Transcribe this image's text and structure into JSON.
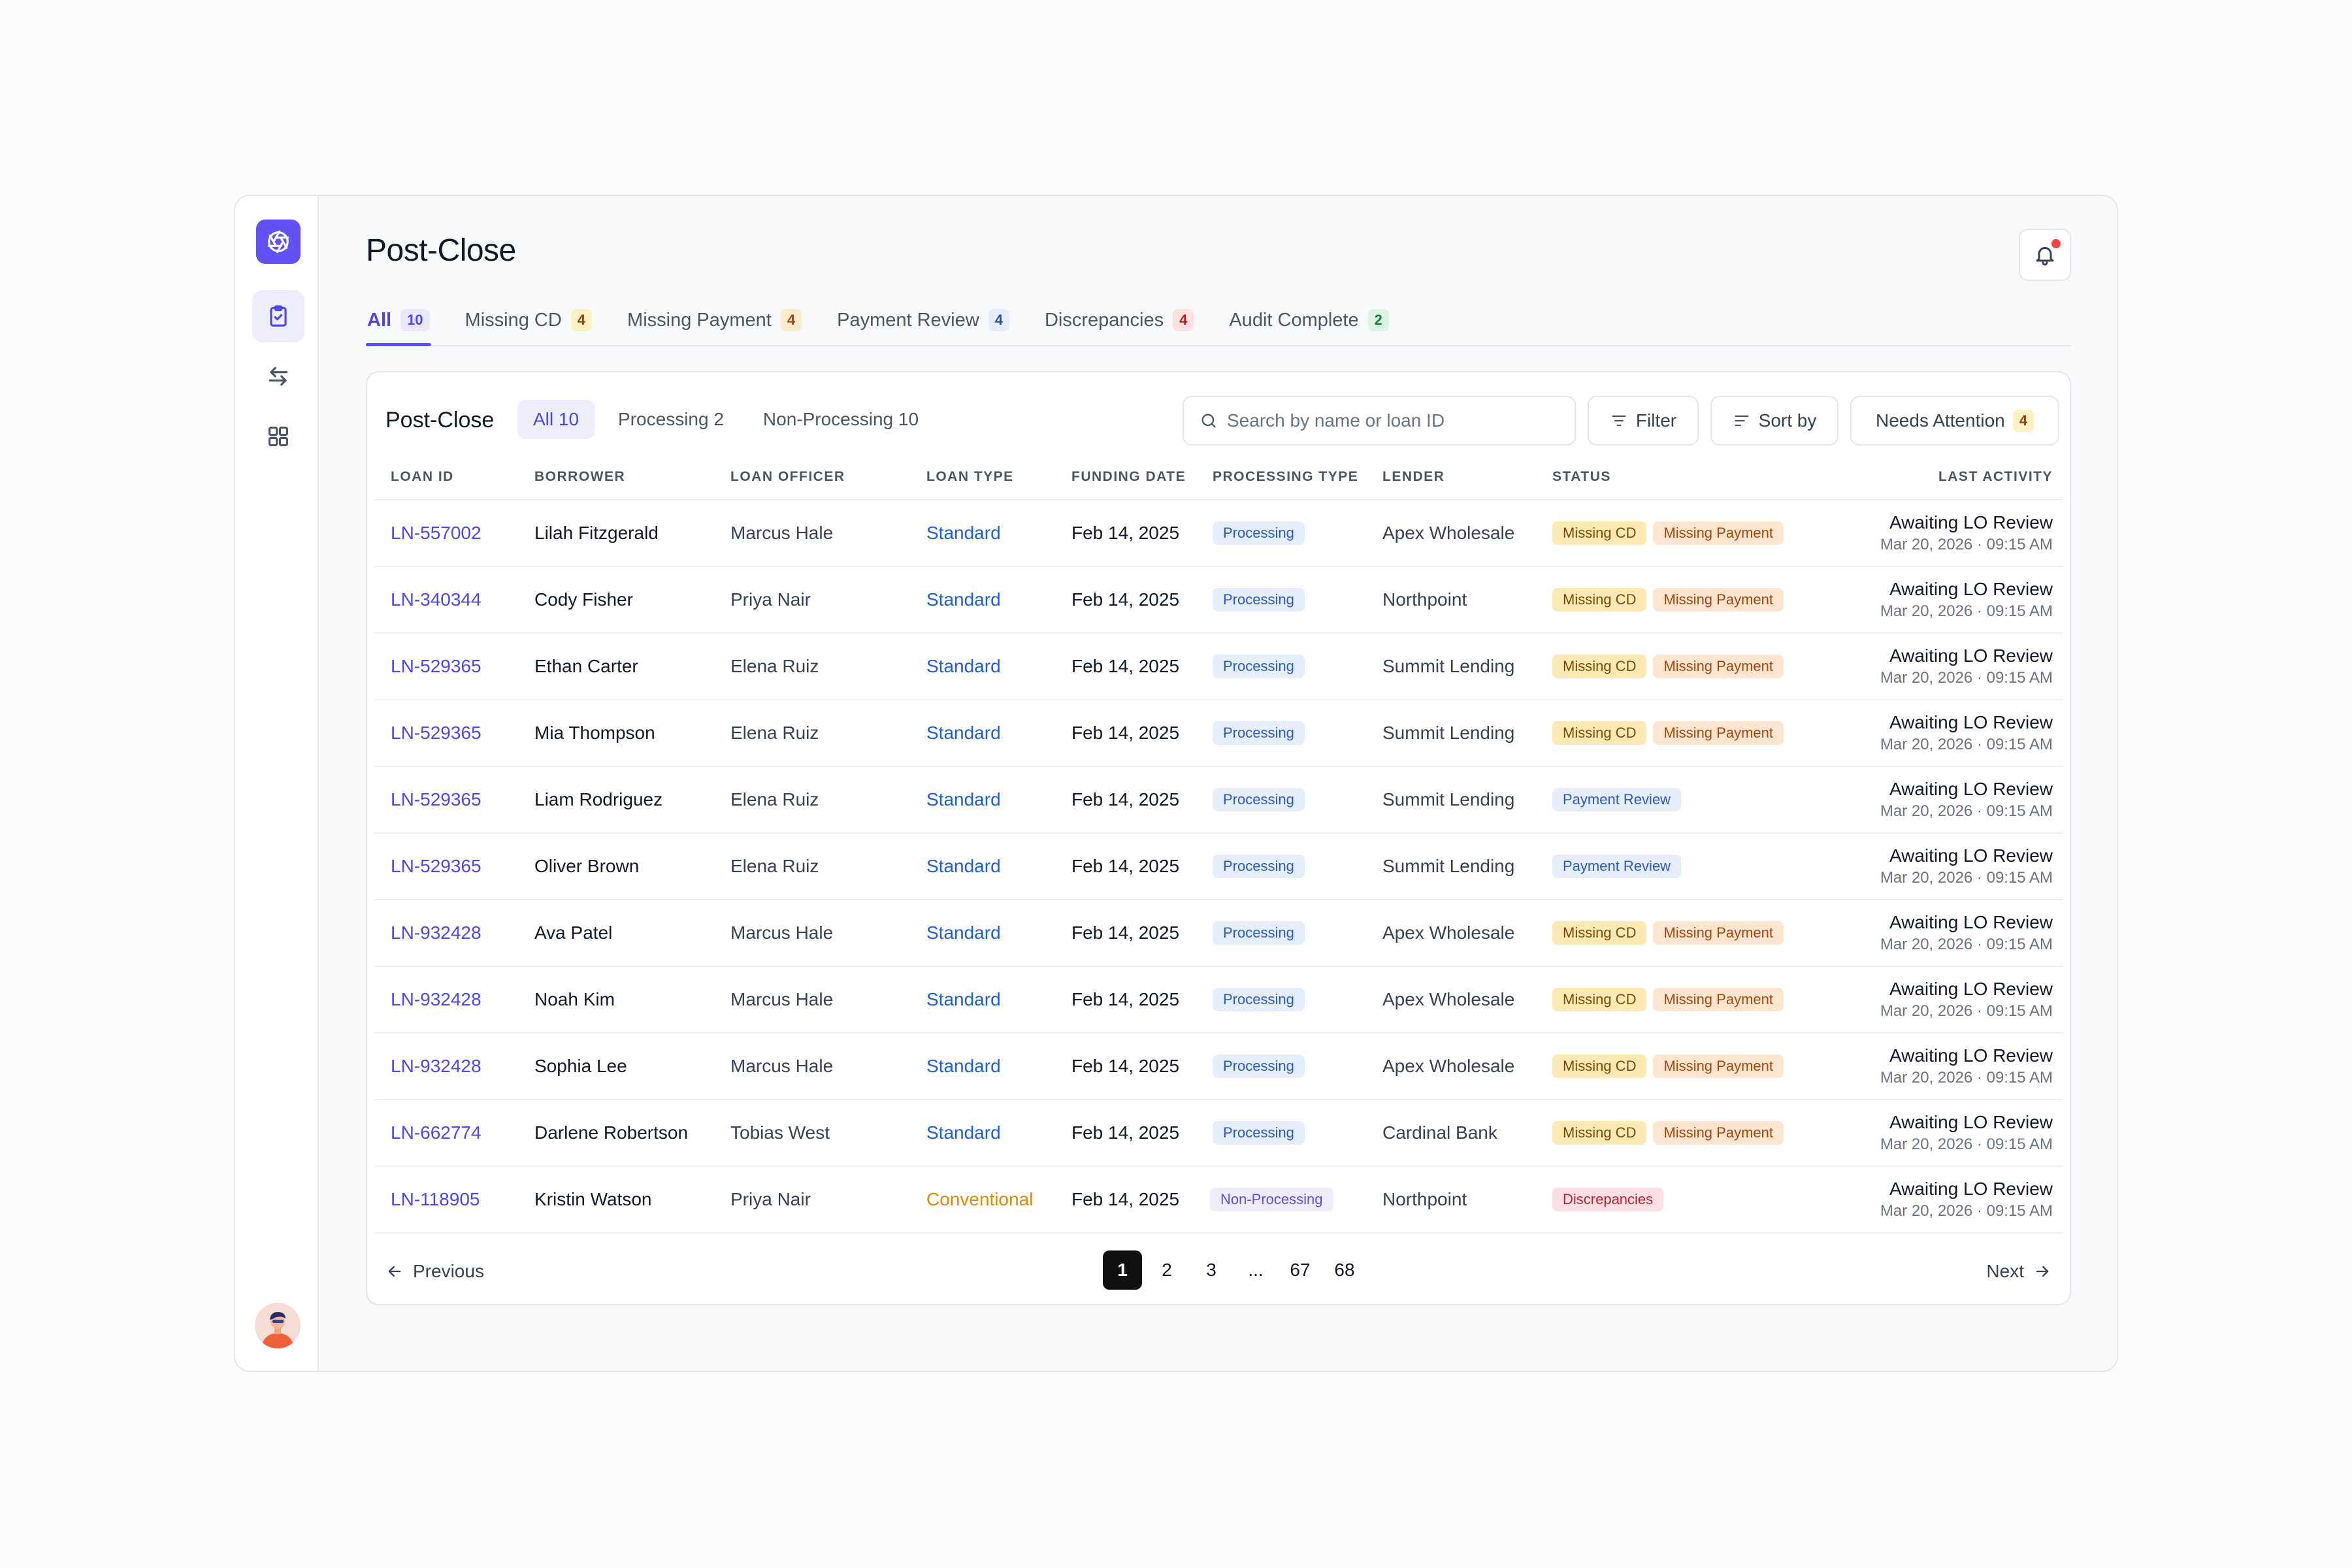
{
  "page": {
    "title": "Post-Close"
  },
  "tabs": [
    {
      "label": "All",
      "count": "10"
    },
    {
      "label": "Missing CD",
      "count": "4"
    },
    {
      "label": "Missing Payment",
      "count": "4"
    },
    {
      "label": "Payment Review",
      "count": "4"
    },
    {
      "label": "Discrepancies",
      "count": "4"
    },
    {
      "label": "Audit Complete",
      "count": "2"
    }
  ],
  "card": {
    "title": "Post-Close",
    "segments": [
      "All 10",
      "Processing 2",
      "Non-Processing 10"
    ],
    "search_placeholder": "Search by name or loan ID",
    "filter_label": "Filter",
    "sort_label": "Sort by",
    "attention_label": "Needs Attention",
    "attention_count": "4"
  },
  "columns": [
    "Loan ID",
    "Borrower",
    "Loan Officer",
    "Loan Type",
    "Funding Date",
    "Processing Type",
    "Lender",
    "Status",
    "Last Activity"
  ],
  "rows": [
    {
      "id": "LN-557002",
      "borrower": "Lilah Fitzgerald",
      "officer": "Marcus Hale",
      "type": "Standard",
      "date": "Feb 14, 2025",
      "proc": "Processing",
      "lender": "Apex Wholesale",
      "status": [
        "Missing CD",
        "Missing Payment"
      ],
      "act": "Awaiting LO Review",
      "act_time": "Mar 20, 2026 · 09:15 AM"
    },
    {
      "id": "LN-340344",
      "borrower": "Cody Fisher",
      "officer": "Priya Nair",
      "type": "Standard",
      "date": "Feb 14, 2025",
      "proc": "Processing",
      "lender": "Northpoint",
      "status": [
        "Missing CD",
        "Missing Payment"
      ],
      "act": "Awaiting LO Review",
      "act_time": "Mar 20, 2026 · 09:15 AM"
    },
    {
      "id": "LN-529365",
      "borrower": "Ethan Carter",
      "officer": "Elena Ruiz",
      "type": "Standard",
      "date": "Feb 14, 2025",
      "proc": "Processing",
      "lender": "Summit Lending",
      "status": [
        "Missing CD",
        "Missing Payment"
      ],
      "act": "Awaiting LO Review",
      "act_time": "Mar 20, 2026 · 09:15 AM"
    },
    {
      "id": "LN-529365",
      "borrower": "Mia Thompson",
      "officer": "Elena Ruiz",
      "type": "Standard",
      "date": "Feb 14, 2025",
      "proc": "Processing",
      "lender": "Summit Lending",
      "status": [
        "Missing CD",
        "Missing Payment"
      ],
      "act": "Awaiting LO Review",
      "act_time": "Mar 20, 2026 · 09:15 AM"
    },
    {
      "id": "LN-529365",
      "borrower": "Liam Rodriguez",
      "officer": "Elena Ruiz",
      "type": "Standard",
      "date": "Feb 14, 2025",
      "proc": "Processing",
      "lender": "Summit Lending",
      "status": [
        "Payment Review"
      ],
      "act": "Awaiting LO Review",
      "act_time": "Mar 20, 2026 · 09:15 AM"
    },
    {
      "id": "LN-529365",
      "borrower": "Oliver Brown",
      "officer": "Elena Ruiz",
      "type": "Standard",
      "date": "Feb 14, 2025",
      "proc": "Processing",
      "lender": "Summit Lending",
      "status": [
        "Payment Review"
      ],
      "act": "Awaiting LO Review",
      "act_time": "Mar 20, 2026 · 09:15 AM"
    },
    {
      "id": "LN-932428",
      "borrower": "Ava Patel",
      "officer": "Marcus Hale",
      "type": "Standard",
      "date": "Feb 14, 2025",
      "proc": "Processing",
      "lender": "Apex Wholesale",
      "status": [
        "Missing CD",
        "Missing Payment"
      ],
      "act": "Awaiting LO Review",
      "act_time": "Mar 20, 2026 · 09:15 AM"
    },
    {
      "id": "LN-932428",
      "borrower": "Noah Kim",
      "officer": "Marcus Hale",
      "type": "Standard",
      "date": "Feb 14, 2025",
      "proc": "Processing",
      "lender": "Apex Wholesale",
      "status": [
        "Missing CD",
        "Missing Payment"
      ],
      "act": "Awaiting LO Review",
      "act_time": "Mar 20, 2026 · 09:15 AM"
    },
    {
      "id": "LN-932428",
      "borrower": "Sophia Lee",
      "officer": "Marcus Hale",
      "type": "Standard",
      "date": "Feb 14, 2025",
      "proc": "Processing",
      "lender": "Apex Wholesale",
      "status": [
        "Missing CD",
        "Missing Payment"
      ],
      "act": "Awaiting LO Review",
      "act_time": "Mar 20, 2026 · 09:15 AM"
    },
    {
      "id": "LN-662774",
      "borrower": "Darlene Robertson",
      "officer": "Tobias West",
      "type": "Standard",
      "date": "Feb 14, 2025",
      "proc": "Processing",
      "lender": "Cardinal Bank",
      "status": [
        "Missing CD",
        "Missing Payment"
      ],
      "act": "Awaiting LO Review",
      "act_time": "Mar 20, 2026 · 09:15 AM"
    },
    {
      "id": "LN-118905",
      "borrower": "Kristin Watson",
      "officer": "Priya Nair",
      "type": "Conventional",
      "date": "Feb 14, 2025",
      "proc": "Non-Processing",
      "lender": "Northpoint",
      "status": [
        "Discrepancies"
      ],
      "act": "Awaiting LO Review",
      "act_time": "Mar 20, 2026 · 09:15 AM"
    }
  ],
  "pagination": {
    "previous": "Previous",
    "next": "Next",
    "pages": [
      "1",
      "2",
      "3",
      "...",
      "67",
      "68"
    ],
    "current": "1"
  }
}
